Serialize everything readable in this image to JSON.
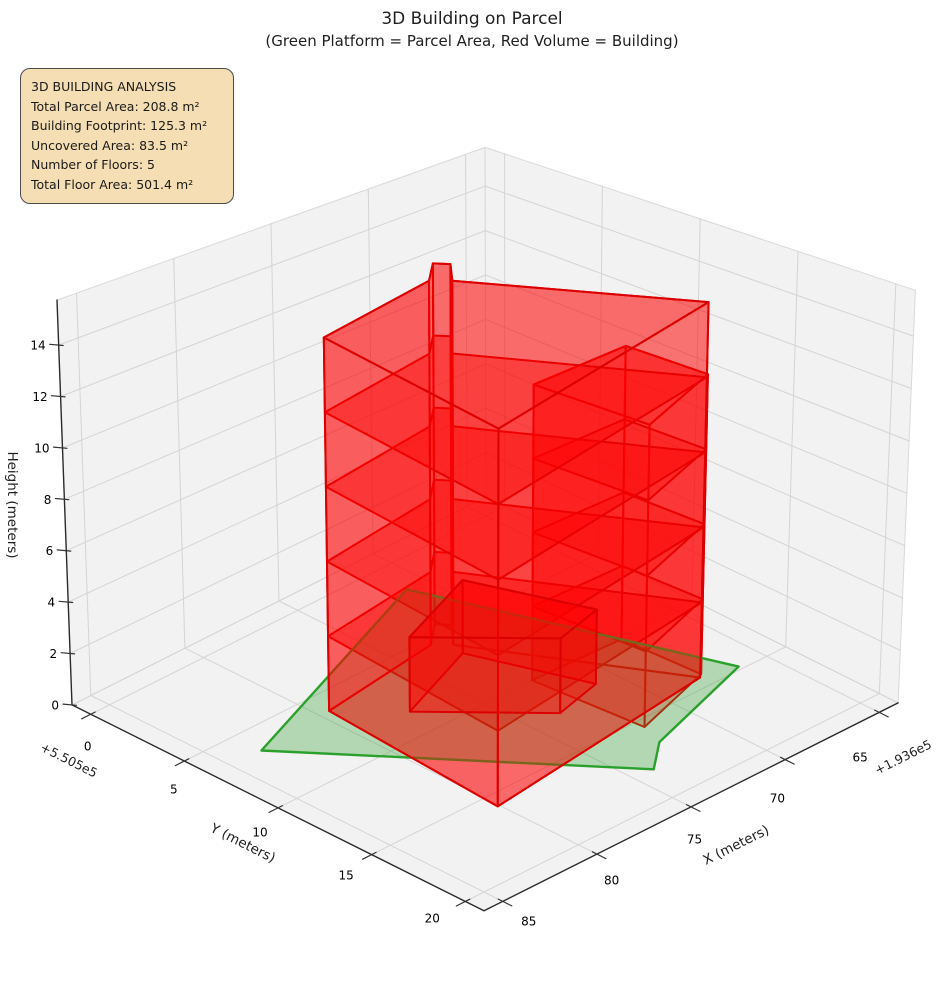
{
  "header": {
    "title": "3D Building on Parcel",
    "subtitle": "(Green Platform = Parcel Area, Red Volume = Building)"
  },
  "annotation": {
    "lines": [
      "3D BUILDING ANALYSIS",
      "Total Parcel Area: 208.8 m²",
      "Building Footprint: 125.3 m²",
      "Uncovered Area: 83.5 m²",
      "Number of Floors: 5",
      "Total Floor Area: 501.4 m²"
    ],
    "background": "#f5deb3",
    "border_color": "#4c4c4c"
  },
  "chart_data": {
    "type": "3d-building-plot",
    "title": "3D Building on Parcel",
    "subtitle": "(Green Platform = Parcel Area, Red Volume = Building)",
    "legend_note": "Green Platform = Parcel Area, Red Volume = Building",
    "axes": {
      "x": {
        "label": "X (meters)",
        "ticks": [
          65,
          70,
          75,
          80,
          85
        ],
        "offset_text": "+1.936e5",
        "range": [
          64,
          86
        ]
      },
      "y": {
        "label": "Y (meters)",
        "ticks": [
          0,
          5,
          10,
          15,
          20
        ],
        "offset_text": "+5.505e5",
        "range": [
          -1,
          21
        ]
      },
      "z": {
        "label": "Height (meters)",
        "ticks": [
          0,
          2,
          4,
          6,
          8,
          10,
          12,
          14
        ],
        "range": [
          0,
          15.75
        ]
      }
    },
    "stats": {
      "total_parcel_area_m2": 208.8,
      "building_footprint_m2": 125.3,
      "uncovered_area_m2": 83.5,
      "number_of_floors": 5,
      "total_floor_area_m2": 501.4
    },
    "parcel": {
      "polygon_xy_m": [
        [
          83.4,
          6.5
        ],
        [
          71.0,
          1.8
        ],
        [
          66.3,
          14.8
        ],
        [
          72.4,
          16.7
        ],
        [
          74.0,
          18.0
        ]
      ],
      "z_m": 0,
      "edge_color": "#2ca02c",
      "fill_color": "#2ca02c",
      "fill_alpha": 0.32
    },
    "building": {
      "edge_color": "#dd0000",
      "fill_color": "#ff0000",
      "floors": 5,
      "floor_height_m": 3,
      "slab_levels_m": [
        3,
        6,
        9,
        12
      ],
      "sections": [
        {
          "name": "right-wing",
          "footprint_xy_m": [
            [
              72.5,
              10.0
            ],
            [
              67.95,
              10.2
            ],
            [
              67.7,
              14.2
            ],
            [
              72.0,
              15.5
            ]
          ],
          "z_bottom_m": 0,
          "z_top_m": 12
        },
        {
          "name": "main-tower",
          "footprint_xy_m": [
            [
              79.5,
              6.2
            ],
            [
              73.3,
              5.4
            ],
            [
              72.1,
              4.4
            ],
            [
              71.7,
              4.9
            ],
            [
              72.7,
              6.0
            ],
            [
              67.9,
              14.35
            ],
            [
              80.1,
              15.8
            ]
          ],
          "z_bottom_m": 0,
          "z_top_m": 15
        },
        {
          "name": "entry-box",
          "footprint_xy_m": [
            [
              72.9,
              6.7
            ],
            [
              77.4,
              8.4
            ],
            [
              73.5,
              12.5
            ],
            [
              71.0,
              11.9
            ]
          ],
          "z_bottom_m": 0,
          "z_top_m": 3
        }
      ]
    },
    "pane_color": "#f2f2f2",
    "grid_color": "#d4d4d4",
    "axis_color": "#2b2b2b"
  }
}
